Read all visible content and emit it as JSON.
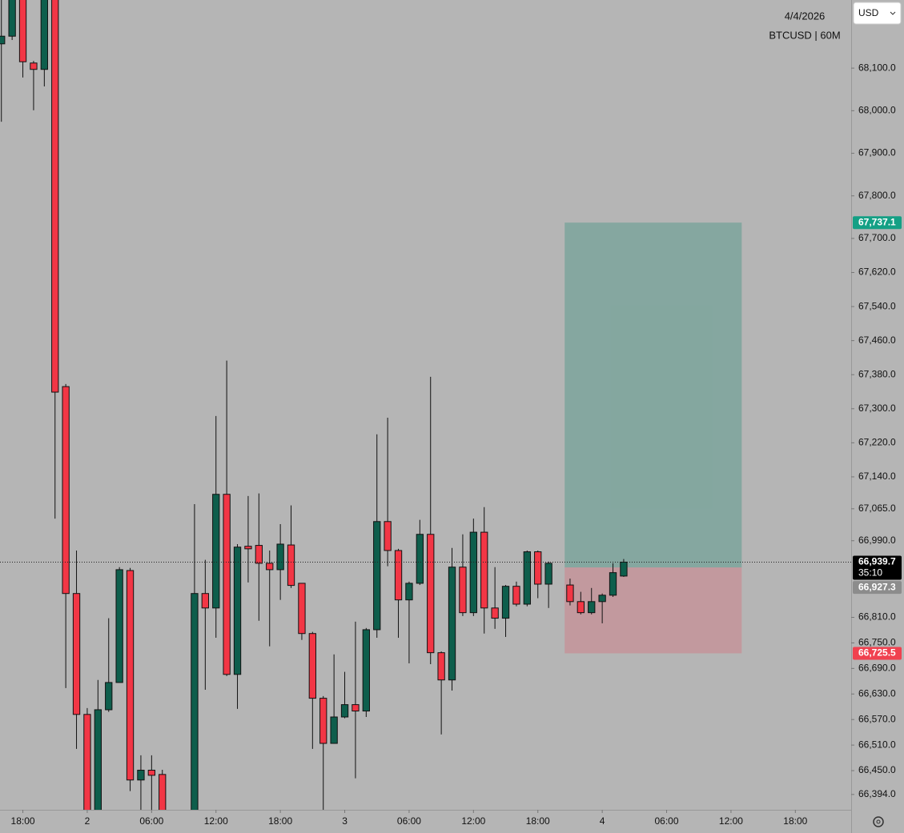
{
  "chart_data": {
    "type": "candlestick",
    "title": "4/4/2026",
    "subtitle": "BTCUSD | 60M",
    "currency": "USD",
    "up_color": "#0e5e4c",
    "down_color": "#f23645",
    "x": [
      -8,
      -7,
      -6,
      -5,
      -4,
      -3,
      -2,
      -1,
      0,
      1,
      2,
      3,
      4,
      5,
      6,
      7,
      10,
      11,
      12,
      13,
      14,
      15,
      16,
      17,
      18,
      19,
      20,
      21,
      22,
      23,
      24,
      25,
      26,
      27,
      28,
      29,
      30,
      31,
      32,
      33,
      34,
      35,
      36,
      37,
      38,
      39,
      40,
      41,
      42,
      43,
      45,
      46,
      47,
      48,
      49,
      50
    ],
    "open": [
      68157,
      68175,
      68269,
      68112,
      68097,
      68269,
      67352,
      66866,
      66582,
      66325,
      66593,
      66657,
      66920,
      66428,
      66451,
      66441,
      66325,
      66866,
      66832,
      67099,
      66676,
      66977,
      66979,
      66937,
      66922,
      66980,
      66890,
      66772,
      66620,
      66514,
      66576,
      66605,
      66590,
      66781,
      67035,
      66967,
      66851,
      66890,
      67005,
      66727,
      66663,
      66928,
      66821,
      67010,
      66832,
      66808,
      66883,
      66841,
      66964,
      66888,
      66886,
      66847,
      66821,
      66847,
      66862,
      66907
    ],
    "high": [
      68279,
      68279,
      68279,
      68117,
      68279,
      68279,
      67358,
      66967,
      66597,
      66663,
      66808,
      66928,
      66926,
      66486,
      66486,
      66452,
      67076,
      66945,
      67283,
      67413,
      66982,
      67095,
      67101,
      66967,
      67029,
      67073,
      66890,
      66776,
      66625,
      66723,
      66682,
      66800,
      66785,
      67240,
      67279,
      66971,
      66894,
      67039,
      67375,
      66730,
      66973,
      67005,
      67042,
      67069,
      66928,
      66886,
      66894,
      66967,
      66967,
      66941,
      66901,
      66870,
      66879,
      66866,
      66937,
      66947
    ],
    "low": [
      67974,
      68166,
      68078,
      68001,
      68057,
      67042,
      66644,
      66501,
      66306,
      66306,
      66588,
      66657,
      66402,
      66358,
      66358,
      66306,
      66306,
      66640,
      66762,
      66672,
      66595,
      66892,
      66802,
      66742,
      66851,
      66879,
      66757,
      66501,
      66358,
      66513,
      66573,
      66432,
      66576,
      66762,
      66930,
      66762,
      66702,
      66886,
      66700,
      66535,
      66638,
      66813,
      66813,
      66772,
      66783,
      66764,
      66836,
      66836,
      66855,
      66832,
      66838,
      66817,
      66817,
      66796,
      66858,
      66905
    ],
    "close": [
      68175,
      68269,
      68115,
      68097,
      68269,
      67339,
      66866,
      66582,
      66325,
      66593,
      66657,
      66922,
      66428,
      66451,
      66439,
      66325,
      66866,
      66832,
      67099,
      66676,
      66975,
      66971,
      66937,
      66922,
      66982,
      66885,
      66772,
      66620,
      66514,
      66576,
      66605,
      66590,
      66781,
      67035,
      66967,
      66851,
      66890,
      67005,
      66727,
      66663,
      66928,
      66821,
      67010,
      66832,
      66808,
      66883,
      66841,
      66964,
      66888,
      66937,
      66847,
      66821,
      66847,
      66862,
      66915,
      66939.7
    ],
    "xlim": [
      -8.13,
      71.2
    ],
    "xticks": [
      {
        "value": -6,
        "label": "18:00"
      },
      {
        "value": 0,
        "label": "2"
      },
      {
        "value": 6,
        "label": "06:00"
      },
      {
        "value": 12,
        "label": "12:00"
      },
      {
        "value": 18,
        "label": "18:00"
      },
      {
        "value": 24,
        "label": "3"
      },
      {
        "value": 30,
        "label": "06:00"
      },
      {
        "value": 36,
        "label": "12:00"
      },
      {
        "value": 42,
        "label": "18:00"
      },
      {
        "value": 48,
        "label": "4"
      },
      {
        "value": 54,
        "label": "06:00"
      },
      {
        "value": 60,
        "label": "12:00"
      },
      {
        "value": 66,
        "label": "18:00"
      }
    ],
    "ylim": [
      66358,
      68260
    ],
    "yticks": [
      {
        "value": 68100,
        "label": "68,100.0"
      },
      {
        "value": 68000,
        "label": "68,000.0"
      },
      {
        "value": 67900,
        "label": "67,900.0"
      },
      {
        "value": 67800,
        "label": "67,800.0"
      },
      {
        "value": 67700,
        "label": "67,700.0"
      },
      {
        "value": 67620,
        "label": "67,620.0"
      },
      {
        "value": 67540,
        "label": "67,540.0"
      },
      {
        "value": 67460,
        "label": "67,460.0"
      },
      {
        "value": 67380,
        "label": "67,380.0"
      },
      {
        "value": 67300,
        "label": "67,300.0"
      },
      {
        "value": 67220,
        "label": "67,220.0"
      },
      {
        "value": 67140,
        "label": "67,140.0"
      },
      {
        "value": 67065,
        "label": "67,065.0"
      },
      {
        "value": 66990,
        "label": "66,990.0"
      },
      {
        "value": 66810,
        "label": "66,810.0"
      },
      {
        "value": 66750,
        "label": "66,750.0"
      },
      {
        "value": 66690,
        "label": "66,690.0"
      },
      {
        "value": 66630,
        "label": "66,630.0"
      },
      {
        "value": 66570,
        "label": "66,570.0"
      },
      {
        "value": 66510,
        "label": "66,510.0"
      },
      {
        "value": 66450,
        "label": "66,450.0"
      },
      {
        "value": 66394,
        "label": "66,394.0"
      }
    ],
    "position": {
      "start": 45,
      "end": 61,
      "target": {
        "value": 67737.1,
        "label": "67,737.1",
        "color": "#14a085"
      },
      "entry": {
        "value": 66927.3,
        "label": "66,927.3",
        "color": "#8c8c8c"
      },
      "stop": {
        "value": 66725.5,
        "label": "66,725.5",
        "color": "#f0414f"
      }
    },
    "last_price": {
      "value": 66939.7,
      "label": "66,939.7",
      "countdown": "35:10",
      "color": "#000000"
    }
  }
}
